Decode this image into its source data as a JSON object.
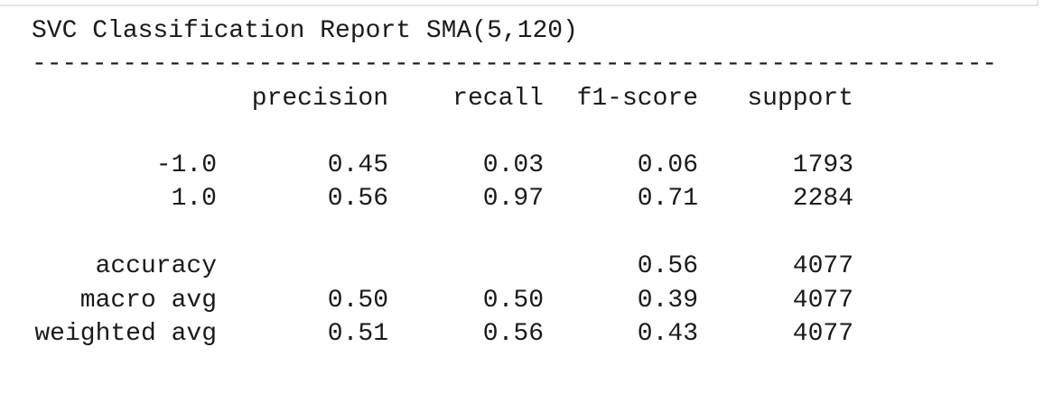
{
  "title": "SVC Classification Report SMA(5,120)",
  "separator": "----------------------------------------------------------------",
  "table": {
    "columns": [
      "precision",
      "recall",
      "f1-score",
      "support"
    ],
    "rows": [
      {
        "label": "-1.0",
        "values": [
          "0.45",
          "0.03",
          "0.06",
          "1793"
        ]
      },
      {
        "label": "1.0",
        "values": [
          "0.56",
          "0.97",
          "0.71",
          "2284"
        ]
      },
      {
        "label": "accuracy",
        "values": [
          null,
          null,
          "0.56",
          "4077"
        ]
      },
      {
        "label": "macro avg",
        "values": [
          "0.50",
          "0.50",
          "0.39",
          "4077"
        ]
      },
      {
        "label": "weighted avg",
        "values": [
          "0.51",
          "0.56",
          "0.43",
          "4077"
        ]
      }
    ]
  }
}
